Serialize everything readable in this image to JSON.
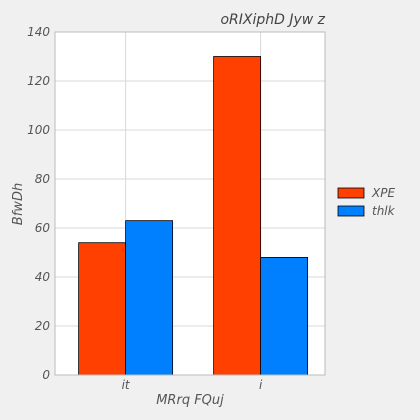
{
  "chart_data": {
    "type": "bar",
    "title": "oRIXiphD Jyw z",
    "xlabel": "MRrq  FQuj",
    "ylabel": "BfwDh",
    "categories": [
      "it",
      "i"
    ],
    "series": [
      {
        "name": "XPE",
        "values": [
          54,
          130
        ],
        "color": "#ff4000"
      },
      {
        "name": "thlk",
        "values": [
          63,
          48
        ],
        "color": "#0080ff"
      }
    ],
    "ylim": [
      0,
      140
    ],
    "yticks": [
      0,
      20,
      40,
      60,
      80,
      100,
      120,
      140
    ],
    "grid": true,
    "legend_position": "right"
  }
}
